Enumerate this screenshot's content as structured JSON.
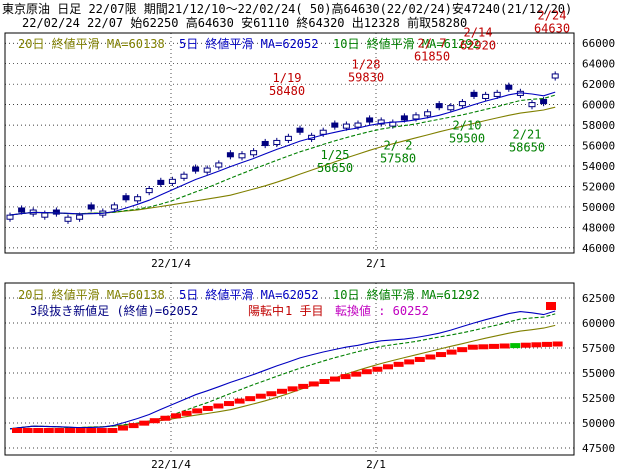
{
  "header": {
    "line1": "東京原油 日足 22/07限 期間21/12/10〜22/02/24( 50)高64630(22/02/24)安47240(21/12/20)",
    "line2": "22/02/24 22/07 始62250 高64630 安61110 終64320 出12328 前取58280"
  },
  "legend_top": [
    {
      "text": "20日 終値平滑 MA=60138",
      "color": "#808000"
    },
    {
      "text": "5日 終値平滑 MA=62052",
      "color": "#0000c0"
    },
    {
      "text": "10日 終値平滑 MA=61292",
      "color": "#008000"
    }
  ],
  "legend_bottom": [
    {
      "text": "20日 終値平滑 MA=60138",
      "color": "#808000"
    },
    {
      "text": "5日 終値平滑 MA=62052",
      "color": "#0000c0"
    },
    {
      "text": "10日 終値平滑 MA=61292",
      "color": "#008000"
    }
  ],
  "kagi_info": {
    "text1": "3段抜き新値足 (終値)=62052",
    "text2": "陽転中",
    "text3": "1 手目",
    "text4": "転換値 : 60252"
  },
  "x_labels": [
    "22/1/4",
    "2/1"
  ],
  "colors": {
    "up": "#ffffff",
    "down": "#000080",
    "price_label": "#c00000",
    "low_label": "#008000",
    "kagi_up": "#ff0000",
    "kagi_turn": "#00c000"
  },
  "chart_data": [
    {
      "type": "candlestick",
      "title": "東京原油 日足 22/07限",
      "y_ticks": [
        46000,
        48000,
        50000,
        52000,
        54000,
        56000,
        58000,
        60000,
        62000,
        64000,
        66000
      ],
      "ylim": [
        45500,
        67000
      ],
      "annotations": [
        {
          "date": "1/19",
          "value": 58480,
          "kind": "high"
        },
        {
          "date": "1/28",
          "value": 59830,
          "kind": "high"
        },
        {
          "date": "2/ 7",
          "value": 61850,
          "kind": "high"
        },
        {
          "date": "2/14",
          "value": 62920,
          "kind": "high"
        },
        {
          "date": "2/24",
          "value": 64630,
          "kind": "high"
        },
        {
          "date": "1/25",
          "value": 56650,
          "kind": "low"
        },
        {
          "date": "2/ 2",
          "value": 57580,
          "kind": "low"
        },
        {
          "date": "2/10",
          "value": 59500,
          "kind": "low"
        },
        {
          "date": "2/21",
          "value": 58650,
          "kind": "low"
        }
      ]
    },
    {
      "type": "kagi",
      "title": "3段抜き新値足",
      "y_ticks": [
        47500,
        50000,
        52500,
        55000,
        57500,
        60000,
        62500
      ],
      "ylim": [
        46800,
        64000
      ]
    }
  ]
}
